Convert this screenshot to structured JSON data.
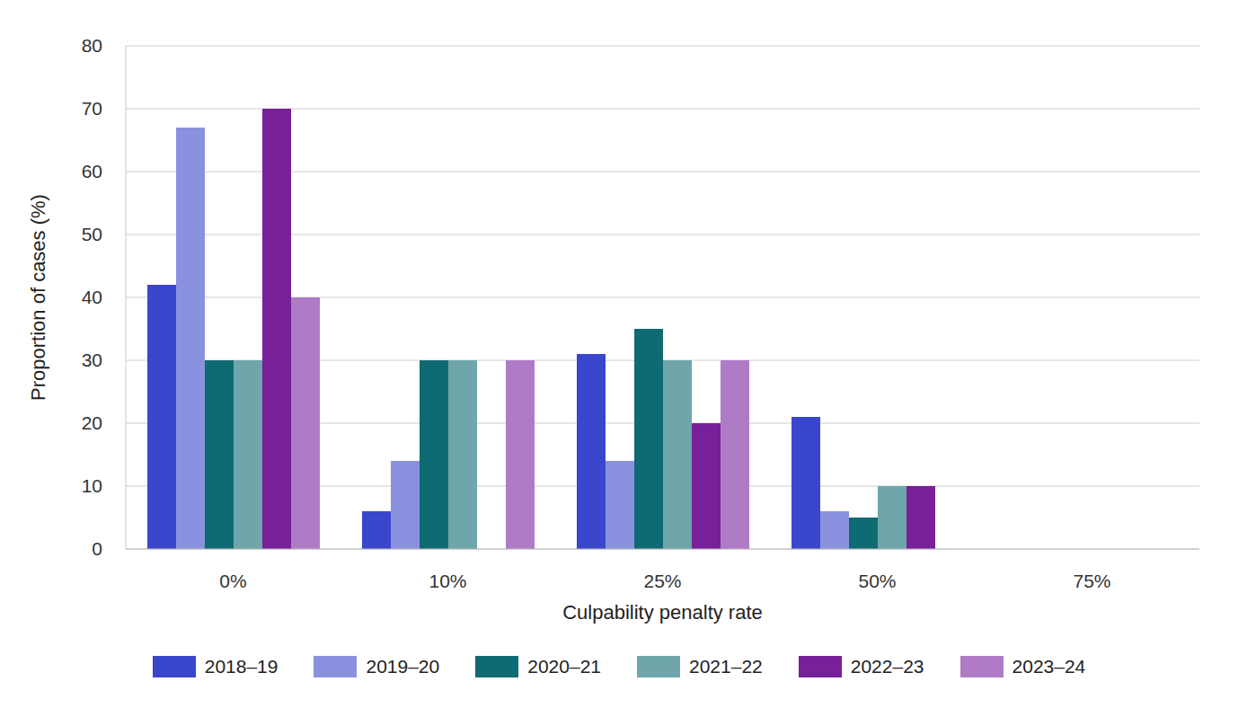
{
  "chart_data": {
    "type": "bar",
    "x_label": "Culpability penalty rate",
    "y_label": "Proportion of cases (%)",
    "categories": [
      "0%",
      "10%",
      "25%",
      "50%",
      "75%"
    ],
    "series": [
      {
        "name": "2018–19",
        "color": "#3a46cb",
        "values": [
          42,
          6,
          31,
          21,
          0
        ]
      },
      {
        "name": "2019–20",
        "color": "#8a92e0",
        "values": [
          67,
          14,
          14,
          6,
          0
        ]
      },
      {
        "name": "2020–21",
        "color": "#0f6b73",
        "values": [
          30,
          30,
          35,
          5,
          0
        ]
      },
      {
        "name": "2021–22",
        "color": "#6ea6ab",
        "values": [
          30,
          30,
          30,
          10,
          0
        ]
      },
      {
        "name": "2022–23",
        "color": "#781f9a",
        "values": [
          70,
          0,
          20,
          10,
          0
        ]
      },
      {
        "name": "2023–24",
        "color": "#b07bc6",
        "values": [
          40,
          30,
          30,
          0,
          0
        ]
      }
    ],
    "ylim": [
      0,
      80
    ],
    "yticks": [
      0,
      10,
      20,
      30,
      40,
      50,
      60,
      70,
      80
    ],
    "grid": true,
    "legend": "bottom"
  }
}
